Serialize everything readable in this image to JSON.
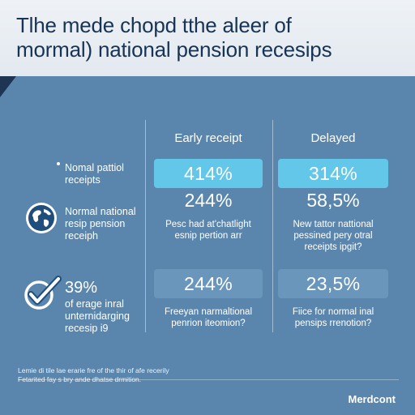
{
  "header": {
    "title_line1": "Tlhe mede chopd tthe aleer of",
    "title_line2": "mormal) national pension recesips"
  },
  "columns": {
    "early": "Early receipt",
    "delayed": "Delayed"
  },
  "rows": {
    "row1": {
      "label_line1": "Nomal pattiol",
      "label_line2": "receipts",
      "early_value": "414%",
      "delayed_value": "314%"
    },
    "row2": {
      "label_line1": "Normal national",
      "label_line2": "resip pension",
      "label_line3": "receiph",
      "early_value": "244%",
      "delayed_value": "58,5%",
      "early_note_line1": "Pesc had at'chatlight",
      "early_note_line2": "esnip pertion arr",
      "delayed_note_line1": "New tattor nattional",
      "delayed_note_line2": "pessined pery otral",
      "delayed_note_line3": "receipts ipgit?"
    },
    "row3": {
      "big_value": "39%",
      "label_line1": "of erage inral",
      "label_line2": "unternidarging",
      "label_line3": "recesip i9",
      "early_value": "244%",
      "delayed_value": "23,5%",
      "early_note_line1": "Freeyan narmaltional",
      "early_note_line2": "penrion iteomion?",
      "delayed_note_line1": "Fiice for normal inal",
      "delayed_note_line2": "pensips rrenotion?"
    }
  },
  "footer": {
    "note_line1": "Lemie di tile lae erarie fre of the thir of afe recerily",
    "note_line2": "Fetarited fay s bry ande dhatse drmition.",
    "brand": "Merdcont"
  },
  "colors": {
    "background": "#5a86ad",
    "header": "#e3e9f0",
    "title": "#173454",
    "bar_bright": "#62c7e8",
    "bar_dim": "#6a96bb"
  },
  "icons": [
    "globe-icon",
    "checkmark-icon"
  ]
}
